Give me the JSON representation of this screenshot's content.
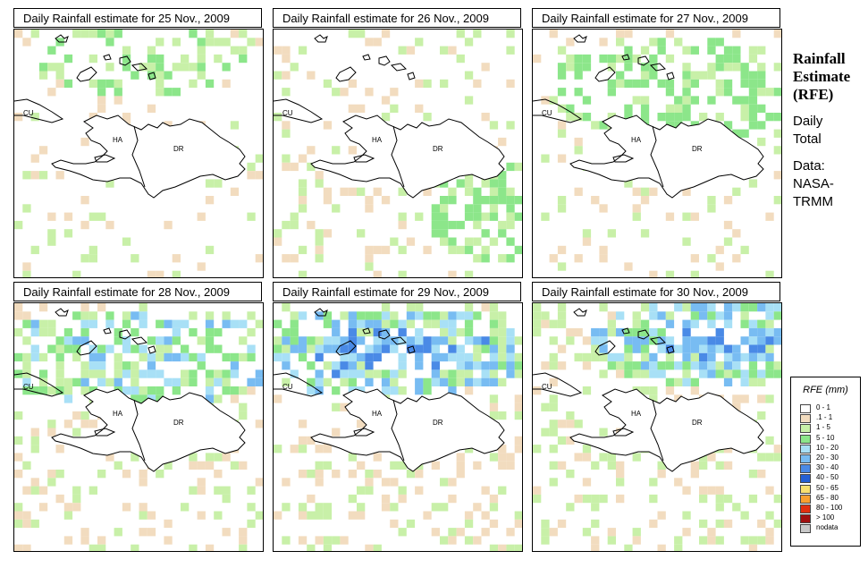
{
  "sidebar": {
    "title_lines": [
      "Rainfall",
      "Estimate",
      "(RFE)"
    ],
    "subtitle_lines": [
      "Daily",
      "Total"
    ],
    "data_lines": [
      "Data:",
      "NASA-",
      "TRMM"
    ]
  },
  "country_labels": [
    "CU",
    "HA",
    "DR"
  ],
  "legend": {
    "title": "RFE (mm)",
    "items": [
      {
        "label": "0 - 1",
        "color": "#ffffff"
      },
      {
        "label": ".1 - 1",
        "color": "#f2dcbf"
      },
      {
        "label": "1 - 5",
        "color": "#c8f0a8"
      },
      {
        "label": "5 - 10",
        "color": "#8ce68a"
      },
      {
        "label": "10 - 20",
        "color": "#a8e0f6"
      },
      {
        "label": "20 - 30",
        "color": "#78bcf2"
      },
      {
        "label": "30 - 40",
        "color": "#4a8ae6"
      },
      {
        "label": "40 - 50",
        "color": "#2460d4"
      },
      {
        "label": "50 - 65",
        "color": "#f8e070"
      },
      {
        "label": "65 - 80",
        "color": "#f8a030"
      },
      {
        "label": "80 - 100",
        "color": "#e03010"
      },
      {
        "label": "> 100",
        "color": "#a01010"
      },
      {
        "label": "nodata",
        "color": "#c8c8c8"
      }
    ]
  },
  "panels": [
    {
      "title": "Daily Rainfall estimate for  25 Nov., 2009",
      "intensity": 1
    },
    {
      "title": "Daily Rainfall estimate for  26 Nov., 2009",
      "intensity": 2
    },
    {
      "title": "Daily Rainfall estimate for  27 Nov., 2009",
      "intensity": 2
    },
    {
      "title": "Daily Rainfall estimate for  28 Nov., 2009",
      "intensity": 3
    },
    {
      "title": "Daily Rainfall estimate for  29 Nov., 2009",
      "intensity": 4
    },
    {
      "title": "Daily Rainfall estimate for  30 Nov., 2009",
      "intensity": 4
    }
  ]
}
